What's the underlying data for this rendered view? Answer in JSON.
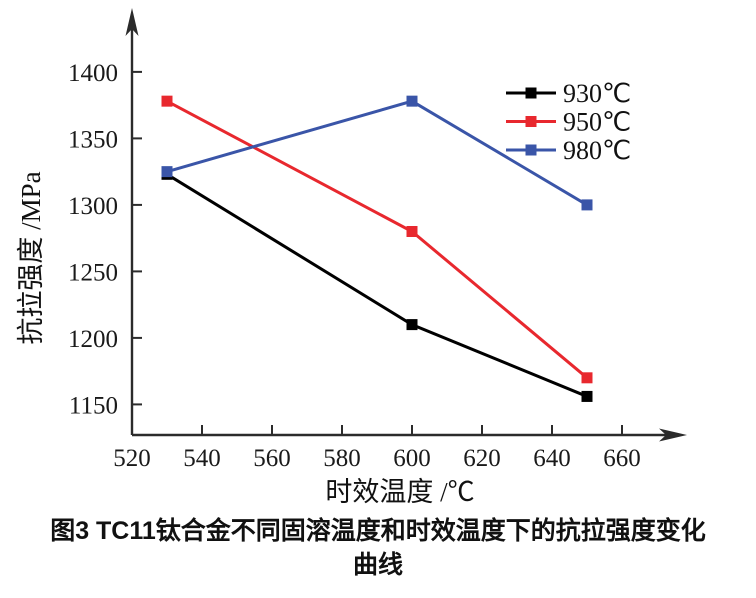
{
  "figure": {
    "caption_line1": "图3  TC11钛合金不同固溶温度和时效温度下的抗拉强度变化",
    "caption_line2": "曲线"
  },
  "chart_data": {
    "type": "line",
    "title": "",
    "xlabel": "时效温度 /℃",
    "ylabel": "抗拉强度 /MPa",
    "x": [
      530,
      600,
      650
    ],
    "series": [
      {
        "name": "930℃",
        "color": "#000000",
        "values": [
          1323,
          1210,
          1156
        ]
      },
      {
        "name": "950℃",
        "color": "#e8282e",
        "values": [
          1378,
          1280,
          1170
        ]
      },
      {
        "name": "980℃",
        "color": "#3a55a8",
        "values": [
          1325,
          1378,
          1300
        ]
      }
    ],
    "x_ticks": [
      520,
      540,
      560,
      580,
      600,
      620,
      640,
      660
    ],
    "y_ticks": [
      1150,
      1200,
      1250,
      1300,
      1350,
      1400
    ],
    "xlim": [
      520,
      678
    ],
    "ylim": [
      1127,
      1433
    ],
    "legend_position": "upper right",
    "grid": false,
    "marker": "square",
    "axis_color": "#2b2b2b",
    "tick_label_color": "#1a1a1a"
  }
}
